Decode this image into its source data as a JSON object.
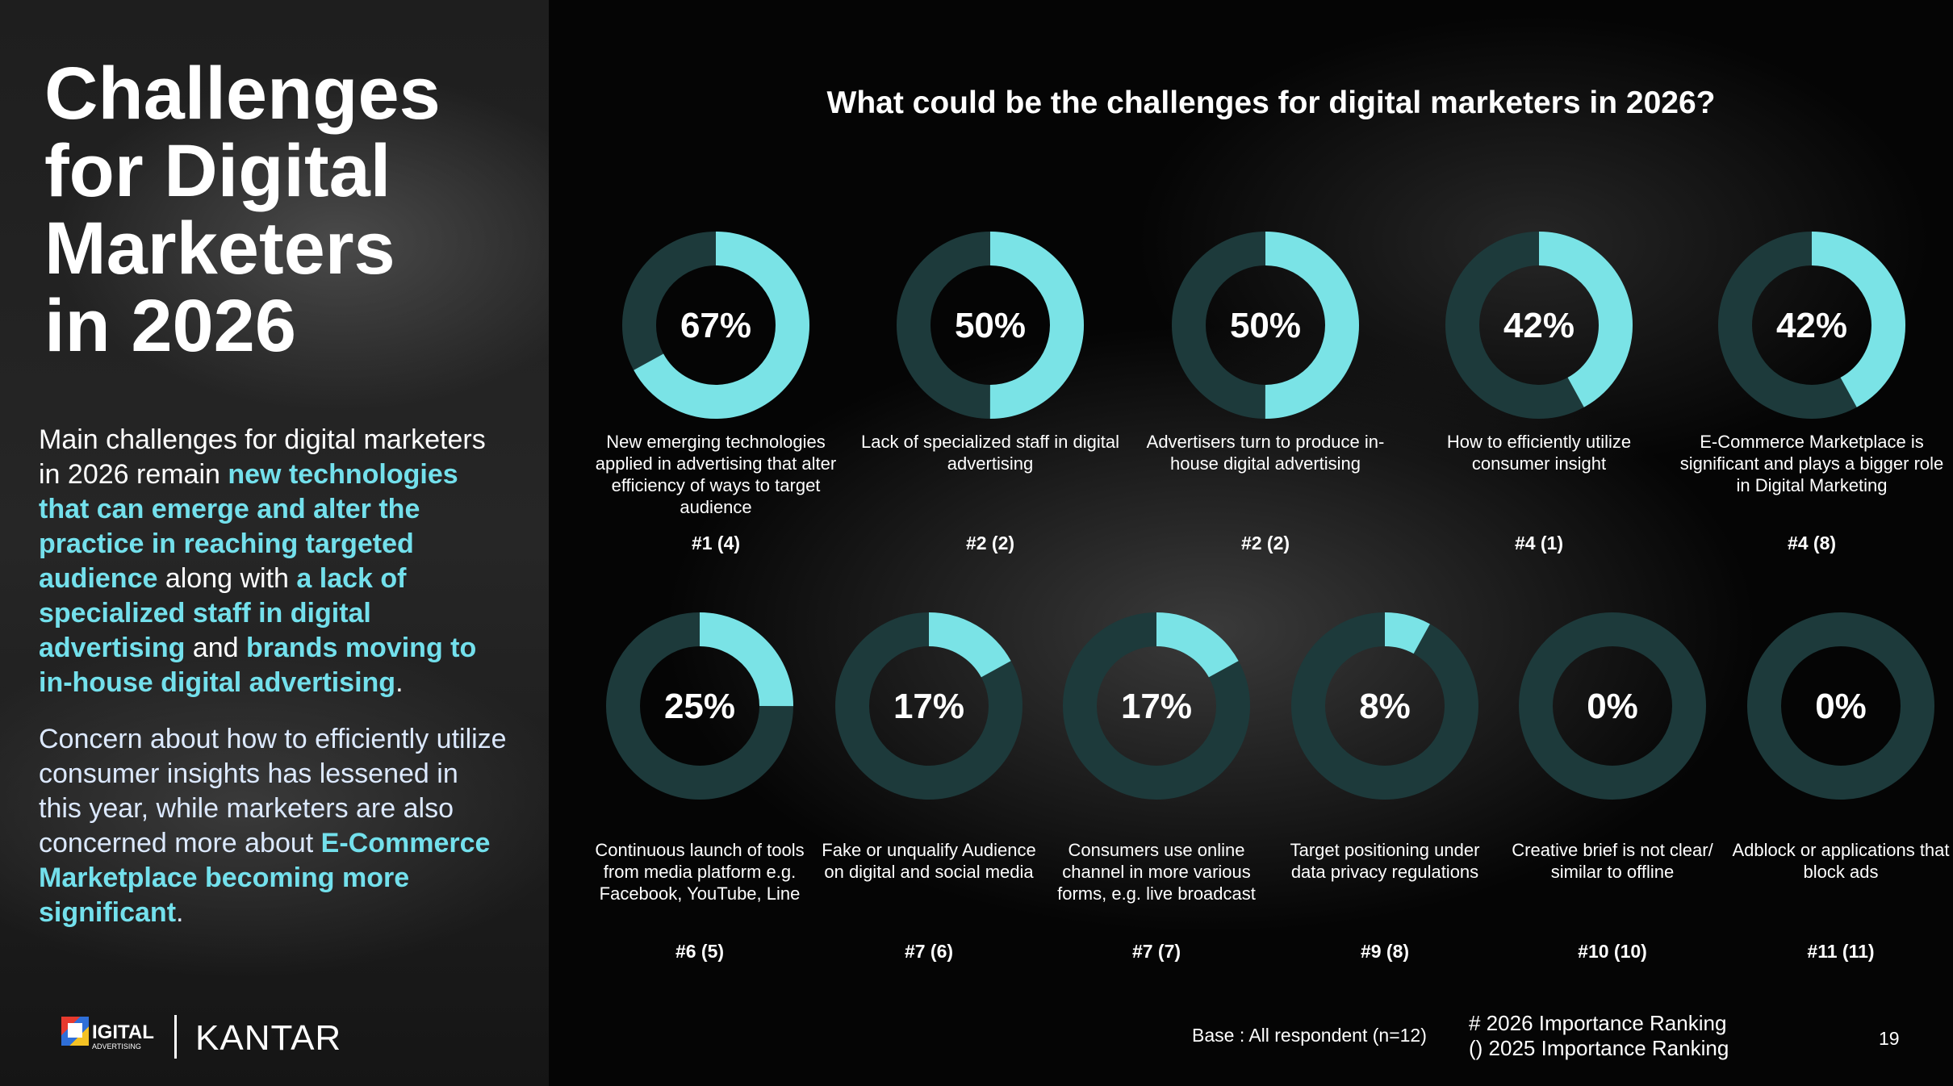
{
  "slide": {
    "title": [
      "Challenges",
      "for Digital",
      "Marketers",
      "in 2026"
    ],
    "paragraphs": [
      [
        {
          "text": "Main challenges for digital marketers in 2026 remain ",
          "highlight": false
        },
        {
          "text": "new technologies that can emerge and alter the practice in reaching targeted audience",
          "highlight": true
        },
        {
          "text": " along with ",
          "highlight": false
        },
        {
          "text": "a lack of specialized staff in digital advertising",
          "highlight": true
        },
        {
          "text": " and ",
          "highlight": false
        },
        {
          "text": "brands moving to in-house digital advertising",
          "highlight": true
        },
        {
          "text": ".",
          "highlight": false
        }
      ],
      [
        {
          "text": "Concern about how to efficiently utilize consumer insights has lessened in this year, while marketers are also concerned more about ",
          "highlight": false
        },
        {
          "text": "E-Commerce Marketplace becoming more significant",
          "highlight": true
        },
        {
          "text": ".",
          "highlight": false
        }
      ]
    ],
    "question": "What could be the challenges for digital marketers in 2026?",
    "logo_digital": "IGITAL",
    "logo_advertising": "ADVERTISING",
    "logo_kantar": "KANTAR",
    "base": "Base : All respondent (n=12)",
    "legend": [
      "# 2026 Importance Ranking",
      "() 2025 Importance Ranking"
    ],
    "page_number": "19"
  },
  "chart_data": [
    {
      "type": "donut",
      "values": [
        67
      ],
      "value_labels": [
        "67%"
      ],
      "ylim": [
        0,
        100
      ],
      "caption": "New emerging technologies applied in advertising that alter efficiency of ways to target audience",
      "rank": "#1 (4)",
      "color": "#7ae3e6",
      "track_color": "#1d3a3b"
    },
    {
      "type": "donut",
      "values": [
        50
      ],
      "value_labels": [
        "50%"
      ],
      "ylim": [
        0,
        100
      ],
      "caption": "Lack of specialized staff in digital advertising",
      "rank": "#2 (2)",
      "color": "#7ae3e6",
      "track_color": "#1d3a3b"
    },
    {
      "type": "donut",
      "values": [
        50
      ],
      "value_labels": [
        "50%"
      ],
      "ylim": [
        0,
        100
      ],
      "caption": "Advertisers turn to produce in-house digital advertising",
      "rank": "#2 (2)",
      "color": "#7ae3e6",
      "track_color": "#1d3a3b"
    },
    {
      "type": "donut",
      "values": [
        42
      ],
      "value_labels": [
        "42%"
      ],
      "ylim": [
        0,
        100
      ],
      "caption": "How to efficiently utilize consumer insight",
      "rank": "#4 (1)",
      "color": "#7ae3e6",
      "track_color": "#1d3a3b"
    },
    {
      "type": "donut",
      "values": [
        42
      ],
      "value_labels": [
        "42%"
      ],
      "ylim": [
        0,
        100
      ],
      "caption": "E-Commerce Marketplace is significant and plays a bigger role in Digital Marketing",
      "rank": "#4 (8)",
      "color": "#7ae3e6",
      "track_color": "#1d3a3b"
    },
    {
      "type": "donut",
      "values": [
        25
      ],
      "value_labels": [
        "25%"
      ],
      "ylim": [
        0,
        100
      ],
      "caption": "Continuous launch of tools from media platform e.g. Facebook, YouTube, Line",
      "rank": "#6 (5)",
      "color": "#7ae3e6",
      "track_color": "#1d3a3b"
    },
    {
      "type": "donut",
      "values": [
        17
      ],
      "value_labels": [
        "17%"
      ],
      "ylim": [
        0,
        100
      ],
      "caption": "Fake or unqualify Audience on digital and social media",
      "rank": "#7 (6)",
      "color": "#7ae3e6",
      "track_color": "#1d3a3b"
    },
    {
      "type": "donut",
      "values": [
        17
      ],
      "value_labels": [
        "17%"
      ],
      "ylim": [
        0,
        100
      ],
      "caption": "Consumers use online channel in more various forms, e.g. live broadcast",
      "rank": "#7 (7)",
      "color": "#7ae3e6",
      "track_color": "#1d3a3b"
    },
    {
      "type": "donut",
      "values": [
        8
      ],
      "value_labels": [
        "8%"
      ],
      "ylim": [
        0,
        100
      ],
      "caption": "Target positioning under data privacy regulations",
      "rank": "#9 (8)",
      "color": "#7ae3e6",
      "track_color": "#1d3a3b"
    },
    {
      "type": "donut",
      "values": [
        0
      ],
      "value_labels": [
        "0%"
      ],
      "ylim": [
        0,
        100
      ],
      "caption": "Creative brief is not clear/ similar to offline",
      "rank": "#10 (10)",
      "color": "#7ae3e6",
      "track_color": "#1d3a3b"
    },
    {
      "type": "donut",
      "values": [
        0
      ],
      "value_labels": [
        "0%"
      ],
      "ylim": [
        0,
        100
      ],
      "caption": "Adblock or applications that block ads",
      "rank": "#11 (11)",
      "color": "#7ae3e6",
      "track_color": "#1d3a3b"
    }
  ]
}
